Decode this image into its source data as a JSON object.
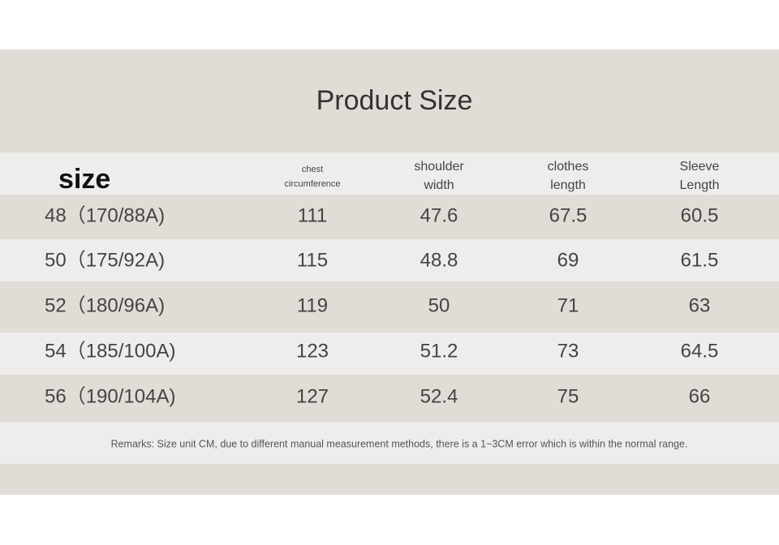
{
  "title": "Product Size",
  "table": {
    "header": [
      [
        "size"
      ],
      [
        "chest",
        "circumference"
      ],
      [
        "shoulder",
        "width"
      ],
      [
        "clothes",
        "length"
      ],
      [
        "Sleeve",
        "Length"
      ]
    ],
    "rows": [
      [
        "48（170/88A)",
        "111",
        "47.6",
        "67.5",
        "60.5"
      ],
      [
        "50（175/92A)",
        "115",
        "48.8",
        "69",
        "61.5"
      ],
      [
        "52（180/96A)",
        "119",
        "50",
        "71",
        "63"
      ],
      [
        "54（185/100A)",
        "123",
        "51.2",
        "73",
        "64.5"
      ],
      [
        "56（190/104A)",
        "127",
        "52.4",
        "75",
        "66"
      ]
    ]
  },
  "remarks": "Remarks: Size unit CM, due to different manual measurement methods, there is a 1~3CM error which is within the normal range."
}
